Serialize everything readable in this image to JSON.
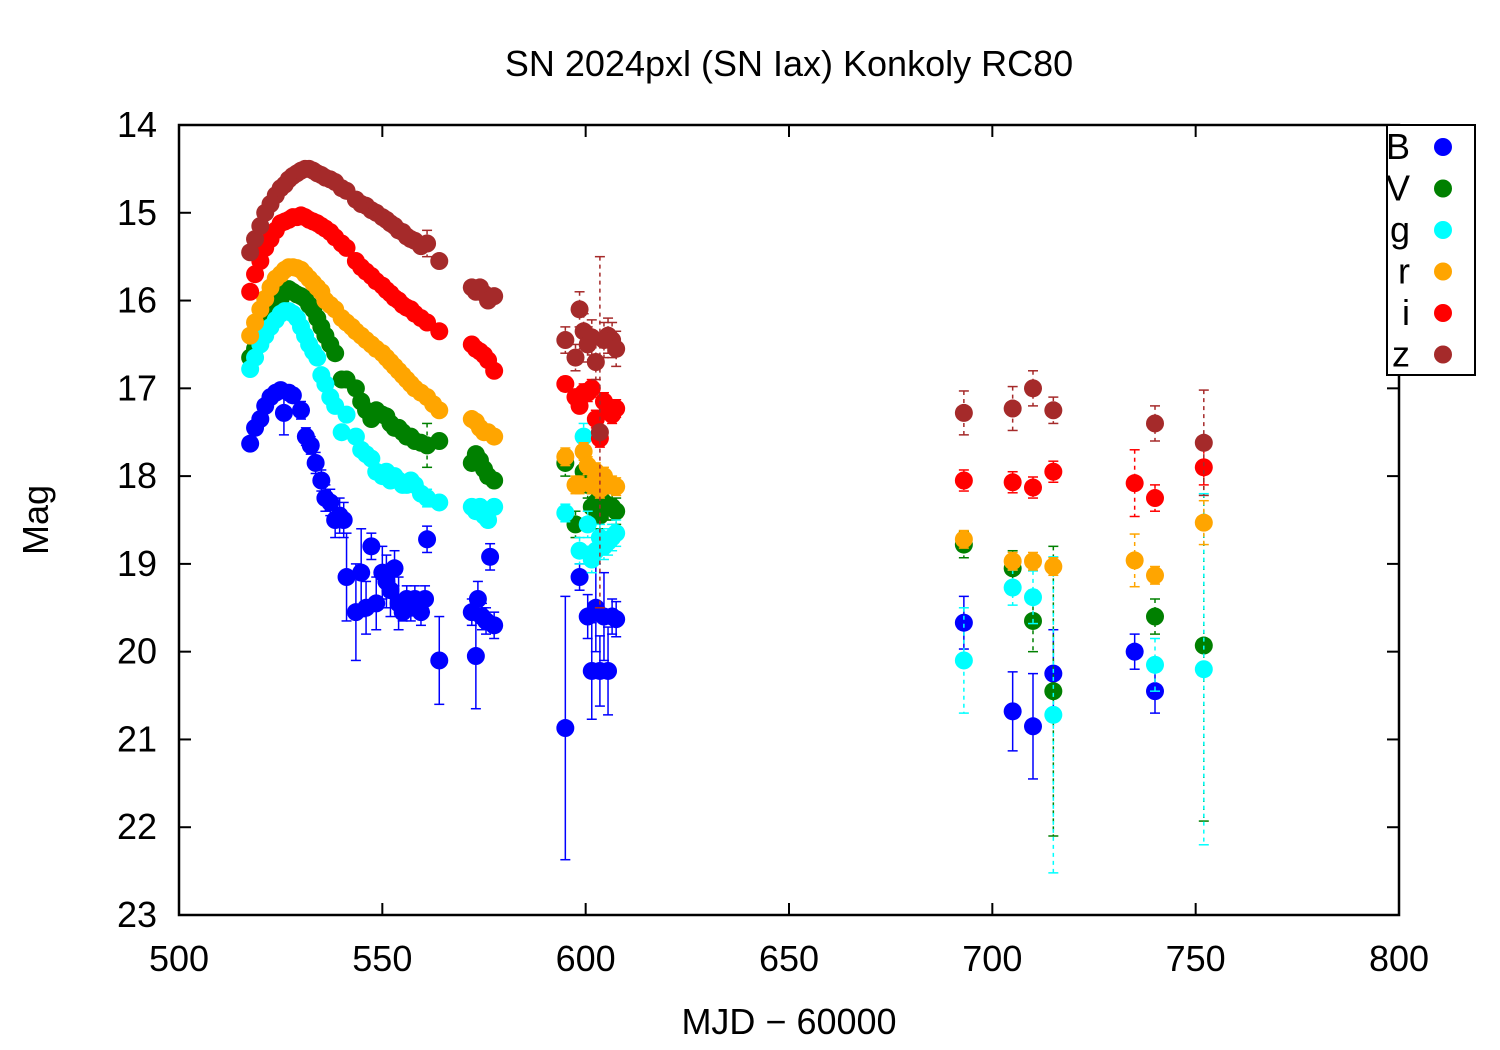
{
  "chart_data": {
    "type": "scatter",
    "title": "SN 2024pxl (SN Iax) Konkoly RC80",
    "xlabel": "MJD − 60000",
    "ylabel": "Mag",
    "xlim": [
      500,
      800
    ],
    "ylim": [
      23,
      14
    ],
    "y_inverted": true,
    "x_ticks": [
      "500",
      "550",
      "600",
      "650",
      "700",
      "750",
      "800"
    ],
    "y_ticks": [
      "14",
      "15",
      "16",
      "17",
      "18",
      "19",
      "20",
      "21",
      "22",
      "23"
    ],
    "grid": false,
    "legend_position": "top-right",
    "series": [
      {
        "name": "B",
        "color": "#0000ff",
        "x": [
          517.5,
          518.7,
          520,
          521.2,
          522.5,
          523.8,
          525,
          525.8,
          527,
          528,
          530,
          531.2,
          532.4,
          533.6,
          535,
          536,
          537.2,
          538.4,
          539.5,
          540.5,
          541.2,
          543.5,
          544.8,
          546,
          547.3,
          548.5,
          550,
          551,
          552,
          553,
          554,
          555,
          556,
          557,
          558,
          559.5,
          560.5,
          561,
          564,
          572,
          573,
          573.5,
          574.5,
          575.5,
          576.5,
          577.5,
          595,
          598.5,
          600.5,
          601.5,
          602.5,
          603.5,
          604.5,
          605.5,
          606.5,
          607.5,
          693,
          705,
          710,
          715,
          735,
          740
        ],
        "y": [
          17.63,
          17.45,
          17.35,
          17.2,
          17.1,
          17.05,
          17.02,
          17.28,
          17.05,
          17.08,
          17.25,
          17.55,
          17.65,
          17.85,
          18.05,
          18.25,
          18.3,
          18.5,
          18.45,
          18.5,
          19.15,
          19.55,
          19.1,
          19.5,
          18.8,
          19.45,
          19.1,
          19.2,
          19.3,
          19.05,
          19.45,
          19.55,
          19.4,
          19.5,
          19.4,
          19.55,
          19.4,
          18.72,
          20.1,
          19.55,
          20.05,
          19.4,
          19.6,
          19.65,
          18.92,
          19.7,
          20.87,
          19.15,
          19.6,
          20.22,
          19.5,
          20.22,
          19.6,
          20.22,
          19.6,
          19.63,
          19.67,
          20.68,
          20.85,
          20.25,
          20.0,
          20.45
        ],
        "err": [
          0.05,
          0.05,
          0.05,
          0.05,
          0.05,
          0.05,
          0.05,
          0.25,
          0.08,
          0.08,
          0.1,
          0.1,
          0.1,
          0.12,
          0.12,
          0.15,
          0.15,
          0.2,
          0.2,
          0.2,
          0.5,
          0.55,
          0.5,
          0.3,
          0.15,
          0.3,
          0.3,
          0.3,
          0.3,
          0.2,
          0.3,
          0.1,
          0.15,
          0.15,
          0.15,
          0.15,
          0.15,
          0.15,
          0.5,
          0.15,
          0.6,
          0.2,
          0.15,
          0.15,
          0.15,
          0.15,
          1.5,
          0.15,
          0.25,
          0.55,
          0.5,
          0.4,
          0.5,
          0.5,
          0.2,
          0.2,
          0.3,
          0.45,
          0.6,
          0.5,
          0.2,
          0.25
        ]
      },
      {
        "name": "V",
        "color": "#008000",
        "x": [
          517.5,
          518.7,
          520,
          521.2,
          522.5,
          523.8,
          525,
          526,
          527,
          528,
          529,
          530,
          531,
          532,
          533,
          534,
          535,
          536,
          537.2,
          538.4,
          540,
          541.2,
          543.5,
          544.8,
          546,
          547.3,
          548.5,
          550,
          551,
          552,
          553,
          554,
          555,
          556,
          557,
          558,
          559.5,
          561,
          564,
          572,
          573,
          574,
          575,
          576,
          577.5,
          595,
          597.5,
          599.5,
          600.5,
          601.5,
          602.5,
          603.5,
          604.5,
          605.5,
          606.5,
          607.5,
          693,
          705,
          710,
          715,
          740,
          752
        ],
        "y": [
          16.65,
          16.55,
          16.4,
          16.3,
          16.15,
          16.05,
          15.98,
          15.9,
          15.87,
          15.9,
          15.93,
          15.95,
          15.98,
          16.05,
          16.1,
          16.2,
          16.3,
          16.4,
          16.5,
          16.6,
          16.9,
          16.9,
          17.0,
          17.15,
          17.25,
          17.35,
          17.25,
          17.3,
          17.32,
          17.4,
          17.45,
          17.45,
          17.5,
          17.55,
          17.55,
          17.6,
          17.62,
          17.65,
          17.6,
          17.85,
          17.75,
          17.82,
          17.92,
          18.0,
          18.05,
          17.85,
          18.55,
          17.95,
          18.1,
          18.35,
          18.3,
          18.45,
          18.3,
          18.35,
          18.35,
          18.4,
          18.78,
          19.05,
          19.65,
          20.45,
          19.6,
          19.93
        ],
        "err": [
          0.03,
          0.03,
          0.03,
          0.03,
          0.03,
          0.03,
          0.03,
          0.03,
          0.03,
          0.03,
          0.03,
          0.03,
          0.03,
          0.03,
          0.03,
          0.03,
          0.03,
          0.03,
          0.03,
          0.03,
          0.05,
          0.05,
          0.05,
          0.05,
          0.05,
          0.05,
          0.05,
          0.05,
          0.05,
          0.05,
          0.05,
          0.05,
          0.05,
          0.05,
          0.05,
          0.05,
          0.05,
          0.25,
          0.05,
          0.08,
          0.08,
          0.08,
          0.08,
          0.08,
          0.08,
          0.15,
          0.15,
          0.15,
          0.15,
          0.15,
          0.15,
          0.15,
          0.15,
          0.15,
          0.15,
          0.15,
          0.15,
          0.2,
          0.35,
          1.65,
          0.2,
          2.0
        ]
      },
      {
        "name": "g",
        "color": "#00ffff",
        "x": [
          517.5,
          518.7,
          520,
          521.2,
          522.5,
          523.8,
          525,
          526,
          527,
          528,
          529,
          530,
          531,
          532,
          533,
          534,
          535,
          536,
          537.2,
          538.4,
          540,
          541.2,
          543.5,
          544.8,
          546,
          547.3,
          548.5,
          550,
          551,
          552,
          553,
          554,
          555,
          556,
          557,
          558,
          559.5,
          561,
          564,
          572,
          573,
          574,
          575,
          576,
          577.5,
          595,
          598.5,
          599.5,
          600.5,
          601.5,
          602.5,
          603.5,
          604.5,
          605.5,
          606.5,
          607.5,
          693,
          705,
          710,
          715,
          740,
          752
        ],
        "y": [
          16.78,
          16.65,
          16.5,
          16.4,
          16.3,
          16.22,
          16.15,
          16.12,
          16.12,
          16.15,
          16.2,
          16.3,
          16.4,
          16.5,
          16.58,
          16.65,
          16.85,
          16.95,
          17.1,
          17.2,
          17.5,
          17.3,
          17.55,
          17.7,
          17.75,
          17.8,
          17.95,
          18.0,
          17.95,
          18.05,
          18.0,
          18.05,
          18.1,
          18.1,
          18.05,
          18.1,
          18.2,
          18.25,
          18.3,
          18.35,
          18.4,
          18.35,
          18.45,
          18.5,
          18.35,
          18.42,
          18.85,
          17.55,
          18.55,
          18.95,
          18.85,
          18.7,
          18.8,
          18.75,
          18.7,
          18.65,
          20.1,
          19.27,
          19.38,
          20.72,
          20.15,
          20.2
        ],
        "err": [
          0.03,
          0.03,
          0.03,
          0.03,
          0.03,
          0.03,
          0.03,
          0.03,
          0.03,
          0.03,
          0.03,
          0.03,
          0.03,
          0.03,
          0.03,
          0.03,
          0.03,
          0.03,
          0.03,
          0.03,
          0.05,
          0.05,
          0.05,
          0.05,
          0.05,
          0.05,
          0.05,
          0.05,
          0.05,
          0.05,
          0.05,
          0.05,
          0.05,
          0.05,
          0.05,
          0.05,
          0.05,
          0.1,
          0.05,
          0.08,
          0.08,
          0.08,
          0.08,
          0.08,
          0.08,
          0.1,
          0.15,
          0.15,
          0.15,
          0.15,
          0.15,
          0.15,
          0.15,
          0.15,
          0.15,
          0.15,
          0.6,
          0.2,
          0.3,
          1.8,
          0.3,
          2.0
        ]
      },
      {
        "name": "r",
        "color": "#ffa500",
        "x": [
          517.5,
          518.7,
          520,
          521.2,
          522.5,
          523.8,
          525,
          526,
          527,
          528,
          529,
          530,
          531,
          532,
          533,
          534,
          535,
          536,
          537.2,
          538.4,
          540,
          541.2,
          542.5,
          543.5,
          544.8,
          546,
          547.3,
          548.5,
          550,
          551,
          552,
          553,
          554,
          555,
          556,
          557,
          558,
          559.5,
          561,
          562.5,
          564,
          572,
          573,
          574,
          575,
          576,
          577.5,
          595,
          597.5,
          598.5,
          599.5,
          600.5,
          601.5,
          602.5,
          603.5,
          604.5,
          605.5,
          606.5,
          607.5,
          693,
          705,
          710,
          715,
          735,
          740,
          752
        ],
        "y": [
          16.4,
          16.25,
          16.1,
          15.98,
          15.85,
          15.75,
          15.7,
          15.65,
          15.62,
          15.62,
          15.63,
          15.65,
          15.7,
          15.75,
          15.8,
          15.85,
          15.9,
          16.0,
          16.05,
          16.1,
          16.2,
          16.25,
          16.3,
          16.35,
          16.4,
          16.45,
          16.5,
          16.55,
          16.6,
          16.65,
          16.7,
          16.75,
          16.8,
          16.85,
          16.9,
          16.95,
          17.0,
          17.05,
          17.1,
          17.18,
          17.25,
          17.35,
          17.38,
          17.45,
          17.5,
          17.5,
          17.55,
          17.78,
          18.1,
          18.1,
          17.72,
          17.88,
          18.1,
          17.95,
          18.15,
          18.0,
          18.1,
          18.1,
          18.12,
          18.72,
          18.97,
          18.97,
          19.03,
          18.96,
          19.13,
          18.53
        ],
        "err": [
          0.03,
          0.03,
          0.03,
          0.03,
          0.03,
          0.03,
          0.03,
          0.03,
          0.03,
          0.03,
          0.03,
          0.03,
          0.03,
          0.03,
          0.03,
          0.03,
          0.03,
          0.03,
          0.03,
          0.03,
          0.03,
          0.03,
          0.03,
          0.03,
          0.03,
          0.03,
          0.03,
          0.03,
          0.03,
          0.03,
          0.03,
          0.03,
          0.03,
          0.03,
          0.03,
          0.03,
          0.03,
          0.03,
          0.03,
          0.03,
          0.03,
          0.05,
          0.05,
          0.05,
          0.05,
          0.05,
          0.05,
          0.1,
          0.1,
          0.1,
          0.1,
          0.1,
          0.1,
          0.1,
          0.1,
          0.1,
          0.1,
          0.1,
          0.1,
          0.1,
          0.1,
          0.1,
          0.1,
          0.3,
          0.1,
          0.25
        ]
      },
      {
        "name": "i",
        "color": "#ff0000",
        "x": [
          517.5,
          518.7,
          520,
          521.2,
          522.5,
          523.8,
          525,
          526,
          527,
          528,
          529,
          530,
          531,
          532,
          533,
          534,
          535,
          536,
          537.2,
          538.4,
          540,
          541.2,
          543.5,
          544.8,
          546,
          547.3,
          548.5,
          550,
          551,
          552,
          553,
          554,
          555,
          556,
          557,
          558,
          559.5,
          561,
          564,
          572,
          573,
          574,
          575,
          576,
          577.5,
          595,
          597.5,
          598.5,
          599.5,
          600.5,
          601.5,
          602.5,
          603.5,
          604.5,
          605.5,
          606.5,
          607.5,
          693,
          705,
          710,
          715,
          735,
          740,
          752
        ],
        "y": [
          15.9,
          15.7,
          15.55,
          15.4,
          15.3,
          15.2,
          15.12,
          15.1,
          15.08,
          15.05,
          15.05,
          15.03,
          15.05,
          15.08,
          15.1,
          15.12,
          15.15,
          15.18,
          15.22,
          15.28,
          15.35,
          15.4,
          15.55,
          15.62,
          15.67,
          15.72,
          15.78,
          15.83,
          15.88,
          15.92,
          15.97,
          16.0,
          16.05,
          16.08,
          16.1,
          16.15,
          16.2,
          16.25,
          16.35,
          16.5,
          16.55,
          16.58,
          16.62,
          16.68,
          16.8,
          16.95,
          17.1,
          17.2,
          17.05,
          17.05,
          17.0,
          17.35,
          17.57,
          17.15,
          17.25,
          17.3,
          17.23,
          18.05,
          18.07,
          18.13,
          17.95,
          18.08,
          18.25,
          17.9
        ],
        "err": [
          0.03,
          0.03,
          0.03,
          0.03,
          0.03,
          0.03,
          0.03,
          0.03,
          0.03,
          0.03,
          0.03,
          0.03,
          0.03,
          0.03,
          0.03,
          0.03,
          0.03,
          0.03,
          0.03,
          0.03,
          0.03,
          0.03,
          0.03,
          0.03,
          0.03,
          0.03,
          0.03,
          0.03,
          0.03,
          0.03,
          0.03,
          0.03,
          0.03,
          0.03,
          0.03,
          0.03,
          0.03,
          0.03,
          0.03,
          0.05,
          0.05,
          0.05,
          0.05,
          0.05,
          0.05,
          0.08,
          0.08,
          0.08,
          0.1,
          0.1,
          0.1,
          0.1,
          0.1,
          0.1,
          0.1,
          0.1,
          0.1,
          0.12,
          0.12,
          0.12,
          0.12,
          0.38,
          0.15,
          0.2
        ]
      },
      {
        "name": "z",
        "color": "#a52a2a",
        "x": [
          517.5,
          518.7,
          520,
          521.2,
          522.5,
          523.8,
          525,
          526,
          527,
          528,
          529,
          530,
          531,
          532,
          533,
          534,
          535,
          536,
          537.2,
          538.4,
          540,
          541.2,
          543.5,
          544.8,
          546,
          547.3,
          548.5,
          550,
          551,
          552,
          553,
          554,
          555,
          556,
          557,
          558,
          559.5,
          561,
          564,
          572,
          573,
          574,
          575,
          576,
          577.5,
          595,
          597.5,
          598.5,
          599.5,
          600.5,
          601.5,
          602.5,
          603.5,
          604.5,
          605.5,
          606.5,
          607.5,
          693,
          705,
          710,
          715,
          740,
          752
        ],
        "y": [
          15.45,
          15.3,
          15.15,
          15.0,
          14.9,
          14.8,
          14.72,
          14.68,
          14.62,
          14.58,
          14.55,
          14.52,
          14.5,
          14.5,
          14.52,
          14.55,
          14.57,
          14.6,
          14.62,
          14.65,
          14.72,
          14.75,
          14.85,
          14.9,
          14.92,
          14.97,
          15.0,
          15.05,
          15.08,
          15.12,
          15.15,
          15.2,
          15.22,
          15.27,
          15.3,
          15.32,
          15.38,
          15.35,
          15.55,
          15.85,
          15.9,
          15.85,
          15.92,
          16.0,
          15.95,
          16.45,
          16.65,
          16.1,
          16.35,
          16.5,
          16.42,
          16.7,
          17.5,
          16.45,
          16.4,
          16.45,
          16.55,
          17.28,
          17.23,
          17.0,
          17.25,
          17.4,
          17.62
        ],
        "err": [
          0.03,
          0.03,
          0.03,
          0.03,
          0.03,
          0.03,
          0.03,
          0.03,
          0.03,
          0.03,
          0.03,
          0.03,
          0.03,
          0.03,
          0.03,
          0.03,
          0.03,
          0.03,
          0.03,
          0.03,
          0.03,
          0.03,
          0.03,
          0.03,
          0.03,
          0.03,
          0.03,
          0.03,
          0.03,
          0.03,
          0.03,
          0.03,
          0.03,
          0.03,
          0.03,
          0.03,
          0.03,
          0.15,
          0.05,
          0.05,
          0.05,
          0.05,
          0.05,
          0.05,
          0.05,
          0.15,
          0.15,
          0.2,
          0.2,
          0.2,
          0.2,
          0.2,
          2.0,
          0.2,
          0.2,
          0.2,
          0.2,
          0.25,
          0.25,
          0.2,
          0.15,
          0.2,
          0.6
        ]
      }
    ]
  }
}
